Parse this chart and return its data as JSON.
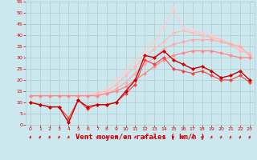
{
  "background_color": "#cce8ee",
  "grid_color": "#aacccc",
  "xlabel": "Vent moyen/en rafales ( km/h )",
  "xlabel_color": "#cc0000",
  "xlabel_fontsize": 6.5,
  "xtick_color": "#cc0000",
  "ytick_color": "#cc0000",
  "xlim_min": -0.5,
  "xlim_max": 23.5,
  "ylim_min": 0,
  "ylim_max": 55,
  "yticks": [
    0,
    5,
    10,
    15,
    20,
    25,
    30,
    35,
    40,
    45,
    50,
    55
  ],
  "xticks": [
    0,
    1,
    2,
    3,
    4,
    5,
    6,
    7,
    8,
    9,
    10,
    11,
    12,
    13,
    14,
    15,
    16,
    17,
    18,
    19,
    20,
    21,
    22,
    23
  ],
  "x": [
    0,
    1,
    2,
    3,
    4,
    5,
    6,
    7,
    8,
    9,
    10,
    11,
    12,
    13,
    14,
    15,
    16,
    17,
    18,
    19,
    20,
    21,
    22,
    23
  ],
  "line_dark1": {
    "y": [
      10,
      9,
      8,
      8,
      1,
      11,
      8,
      9,
      9,
      10,
      15,
      20,
      31,
      30,
      33,
      29,
      27,
      25,
      26,
      24,
      21,
      22,
      24,
      20
    ],
    "color": "#cc0000",
    "lw": 1.0
  },
  "line_dark2": {
    "y": [
      10,
      9,
      8,
      8,
      3,
      11,
      7,
      9,
      9,
      10,
      14,
      18,
      29,
      27,
      30,
      25,
      24,
      23,
      24,
      22,
      20,
      20,
      22,
      19
    ],
    "color": "#ee4444",
    "lw": 0.8
  },
  "line_light1": {
    "y": [
      13,
      13,
      13,
      13,
      13,
      13,
      13,
      13,
      14,
      15,
      17,
      20,
      23,
      26,
      29,
      31,
      32,
      33,
      33,
      33,
      32,
      31,
      30,
      30
    ],
    "color": "#ff8888",
    "lw": 0.9
  },
  "line_light2": {
    "y": [
      13,
      13,
      13,
      13,
      13,
      13,
      13,
      13,
      14,
      16,
      19,
      23,
      27,
      30,
      34,
      36,
      37,
      38,
      38,
      38,
      37,
      36,
      35,
      31
    ],
    "color": "#ffaaaa",
    "lw": 0.9
  },
  "line_light3": {
    "y": [
      13,
      13,
      13,
      13,
      13,
      13,
      13,
      14,
      15,
      18,
      22,
      26,
      30,
      34,
      37,
      41,
      42,
      41,
      40,
      39,
      38,
      36,
      33,
      32
    ],
    "color": "#ffbbbb",
    "lw": 0.9
  },
  "line_light4": {
    "y": [
      13,
      13,
      13,
      13,
      13,
      13,
      13,
      14,
      16,
      20,
      24,
      29,
      33,
      37,
      44,
      52,
      43,
      42,
      41,
      40,
      38,
      36,
      34,
      31
    ],
    "color": "#ffcccc",
    "lw": 0.9
  },
  "marker_color": "#cc0000",
  "marker_size": 2.5
}
